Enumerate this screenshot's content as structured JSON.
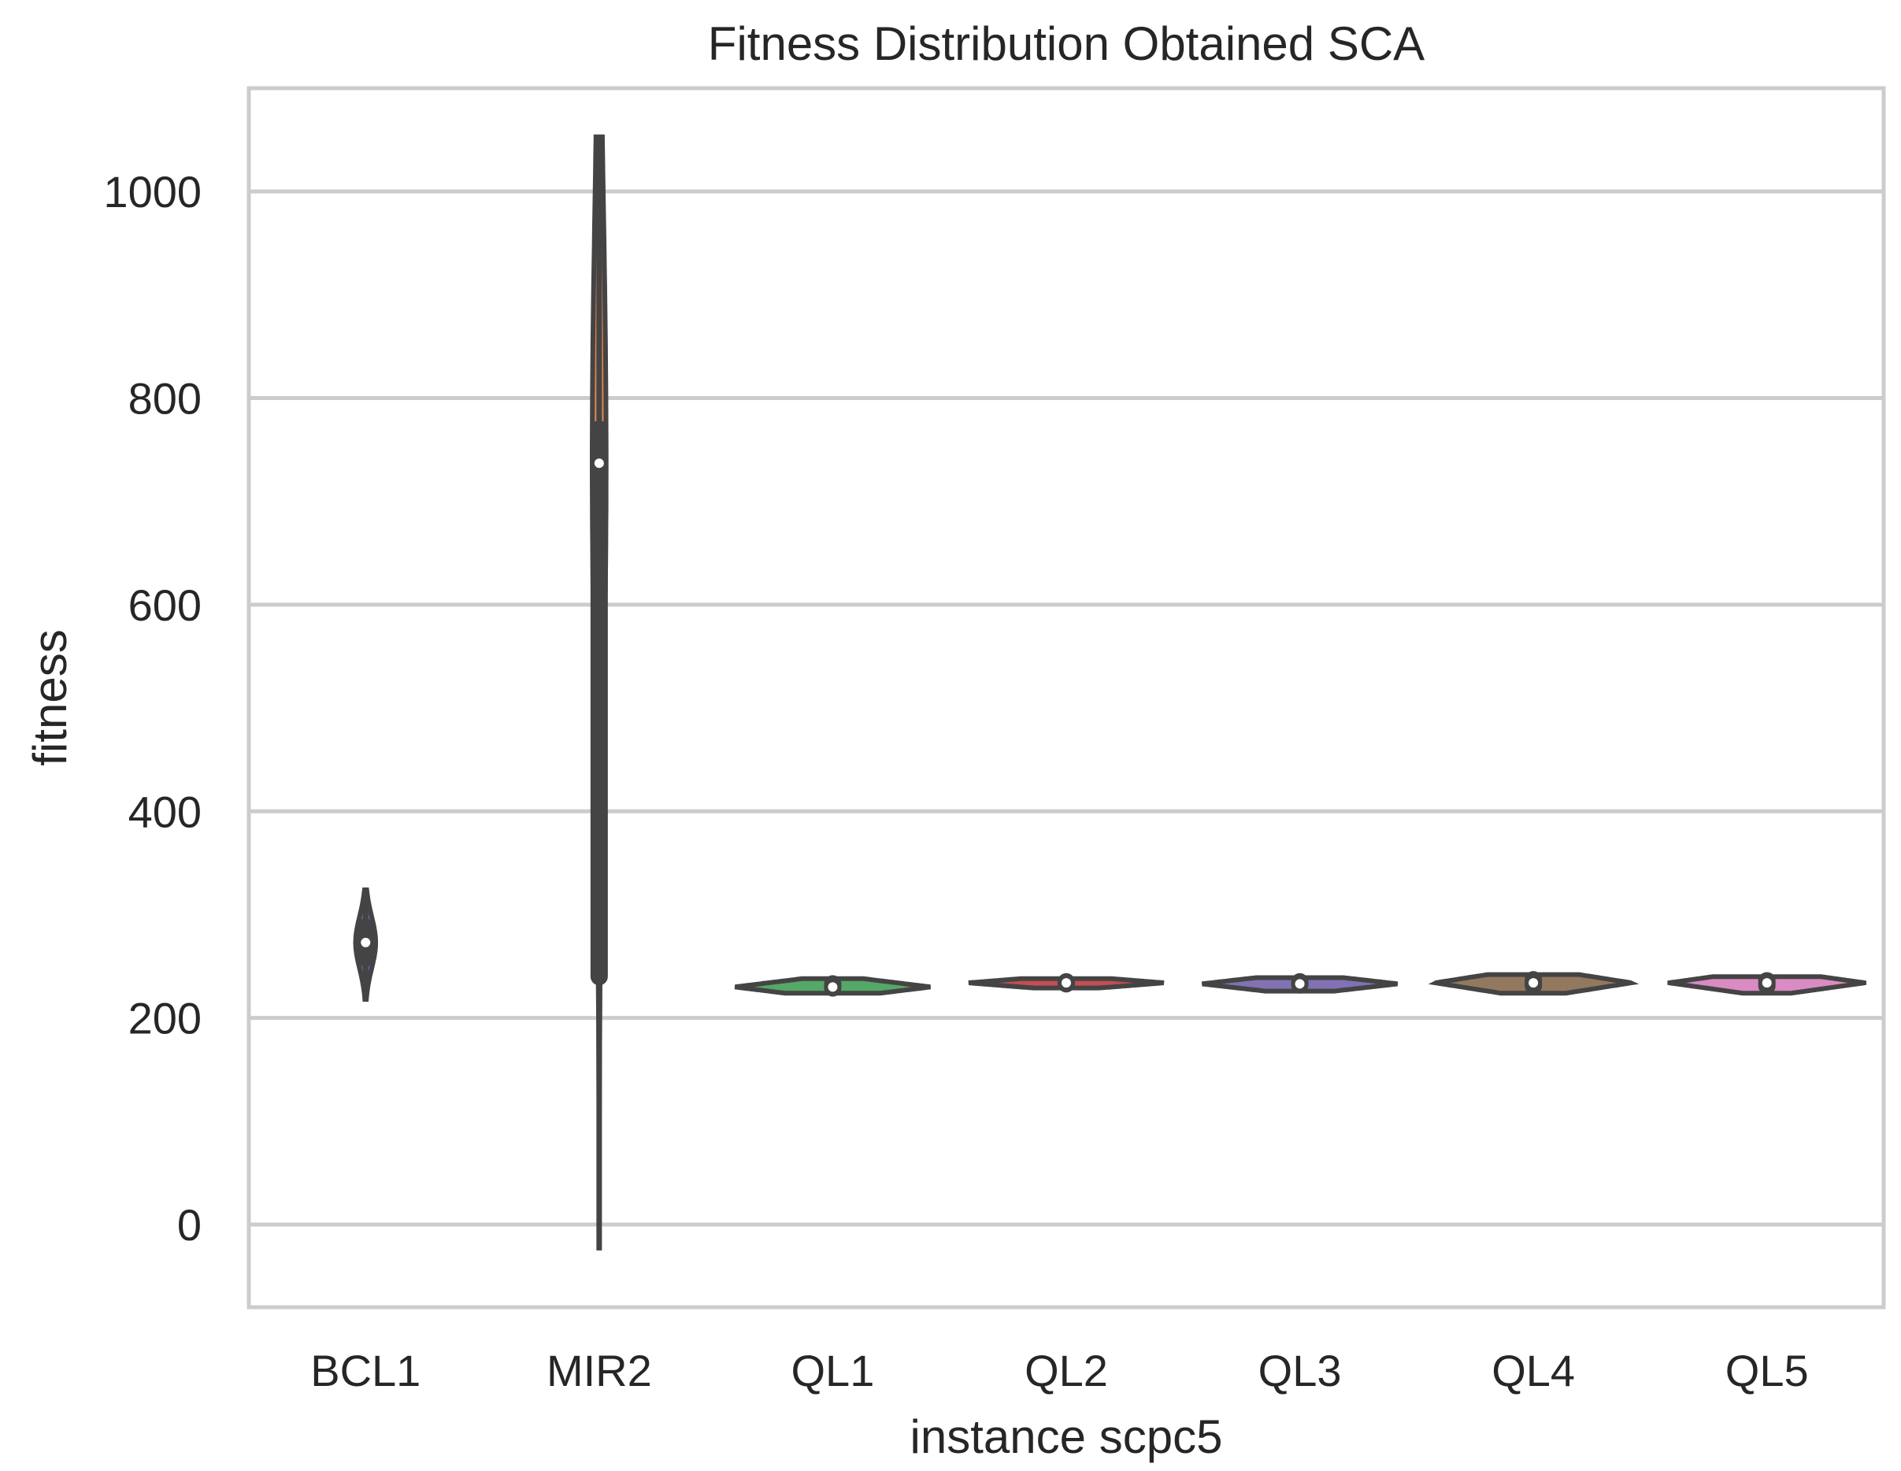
{
  "chart_data": {
    "type": "violin",
    "title": "Fitness Distribution Obtained SCA",
    "xlabel": "instance scpc5",
    "ylabel": "fitness",
    "ylim": [
      -80,
      1100
    ],
    "yticks": [
      0,
      200,
      400,
      600,
      800,
      1000
    ],
    "ytick_labels": [
      "0",
      "200",
      "400",
      "600",
      "800",
      "1000"
    ],
    "grid": true,
    "categories": [
      "BCL1",
      "MIR2",
      "QL1",
      "QL2",
      "QL3",
      "QL4",
      "QL5"
    ],
    "series": [
      {
        "name": "BCL1",
        "min": 218,
        "q1": 258,
        "median": 273,
        "q3": 288,
        "max": 324,
        "color": "#4c72b0"
      },
      {
        "name": "MIR2",
        "min": -25,
        "q1": 240,
        "median": 737,
        "q3": 770,
        "max": 1053,
        "color": "#dd8452"
      },
      {
        "name": "QL1",
        "min": 224,
        "q1": 229,
        "median": 230,
        "q3": 233,
        "max": 238,
        "color": "#55a868"
      },
      {
        "name": "QL2",
        "min": 229,
        "q1": 233,
        "median": 234,
        "q3": 235,
        "max": 238,
        "color": "#c44e52"
      },
      {
        "name": "QL3",
        "min": 226,
        "q1": 232,
        "median": 233,
        "q3": 235,
        "max": 239,
        "color": "#8172b3"
      },
      {
        "name": "QL4",
        "min": 224,
        "q1": 231,
        "median": 234,
        "q3": 237,
        "max": 242,
        "color": "#937860"
      },
      {
        "name": "QL5",
        "min": 224,
        "q1": 231,
        "median": 234,
        "q3": 236,
        "max": 240,
        "color": "#da8bc3"
      }
    ]
  }
}
